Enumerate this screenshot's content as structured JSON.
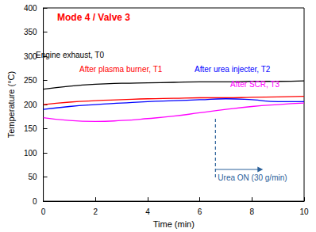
{
  "chart_data": {
    "type": "line",
    "title": "Mode 4 / Valve 3",
    "title_color": "#ff0000",
    "x_label": "Time (min)",
    "y_label": "Temperature (°C)",
    "x": [
      0,
      1,
      2,
      3,
      4,
      5,
      6,
      7,
      8,
      9,
      10
    ],
    "series": [
      {
        "name": "Engine exhaust, T0",
        "color": "#000000",
        "values": [
          232,
          238,
          242,
          244,
          245,
          246,
          247,
          247,
          248,
          248,
          249
        ]
      },
      {
        "name": "After plasma burner, T1",
        "color": "#ff0000",
        "values": [
          200,
          205,
          208,
          210,
          212,
          213,
          214,
          214,
          215,
          216,
          217
        ]
      },
      {
        "name": "After urea injecter, T2",
        "color": "#0000ff",
        "values": [
          190,
          196,
          200,
          203,
          206,
          208,
          210,
          212,
          210,
          206,
          206
        ]
      },
      {
        "name": "After SCR, T3",
        "color": "#ff00ff",
        "values": [
          173,
          167,
          165,
          167,
          171,
          176,
          183,
          190,
          196,
          200,
          203
        ]
      }
    ],
    "annotation": {
      "x": 6.6,
      "text": "Urea ON (30 g/min)",
      "color": "#2a6099"
    },
    "xlim": [
      0,
      10
    ],
    "xticks": [
      0,
      2,
      4,
      6,
      8,
      10
    ],
    "ylim": [
      0,
      400
    ],
    "yticks": [
      0,
      50,
      100,
      150,
      200,
      250,
      300,
      350,
      400
    ],
    "grid": false
  }
}
